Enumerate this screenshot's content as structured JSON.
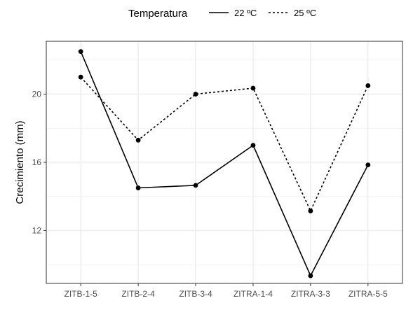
{
  "chart_data": {
    "type": "line",
    "legend_title": "Temperatura",
    "legend_position": "top",
    "categories": [
      "ZITB-1-5",
      "ZITB-2-4",
      "ZITB-3-4",
      "ZITRA-1-4",
      "ZITRA-3-3",
      "ZITRA-5-5"
    ],
    "series": [
      {
        "name": "22 ºC",
        "line_style": "solid",
        "values": [
          22.5,
          14.5,
          14.65,
          17.0,
          9.35,
          15.85
        ]
      },
      {
        "name": "25 ºC",
        "line_style": "dashed",
        "values": [
          21.0,
          17.3,
          20.0,
          20.35,
          13.15,
          20.5
        ]
      }
    ],
    "xlabel": "",
    "ylabel": "Crecimiento (mm)",
    "ylim": [
      8.9,
      23.1
    ],
    "yticks": [
      12,
      16,
      20
    ],
    "grid": true,
    "colors": {
      "line": "#000000",
      "grid": "#ebebeb",
      "panel_border": "#333333"
    }
  }
}
